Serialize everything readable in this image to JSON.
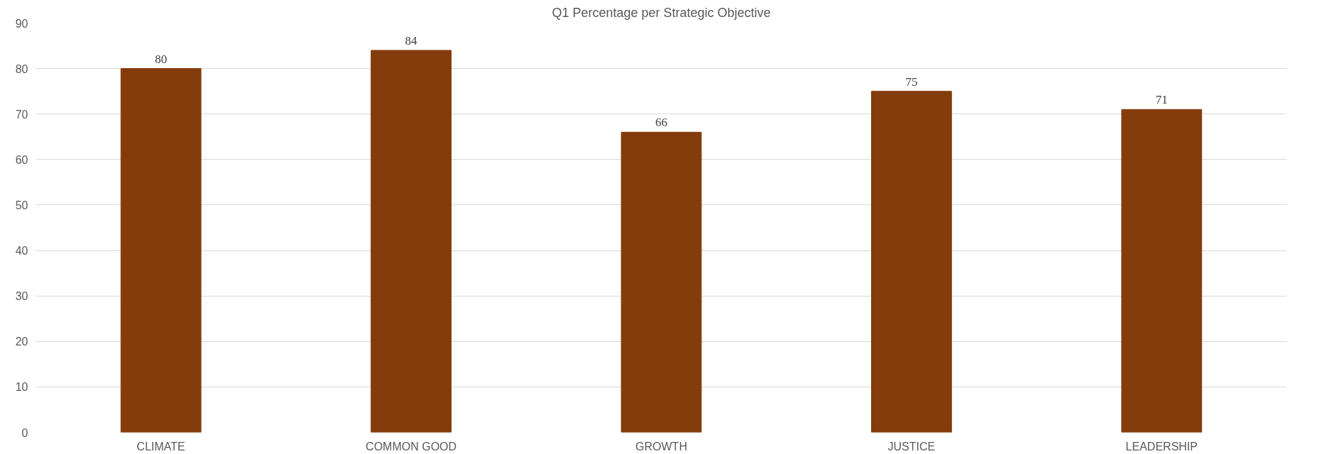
{
  "chart_data": {
    "type": "bar",
    "title": "Q1 Percentage per Strategic Objective",
    "categories": [
      "CLIMATE",
      "COMMON GOOD",
      "GROWTH",
      "JUSTICE",
      "LEADERSHIP"
    ],
    "values": [
      80,
      84,
      66,
      75,
      71
    ],
    "color": "#843c0c",
    "ylim": [
      0,
      90
    ],
    "yticks": [
      0,
      10,
      20,
      30,
      40,
      50,
      60,
      70,
      80,
      90
    ],
    "grid": "y",
    "data_labels": true
  }
}
